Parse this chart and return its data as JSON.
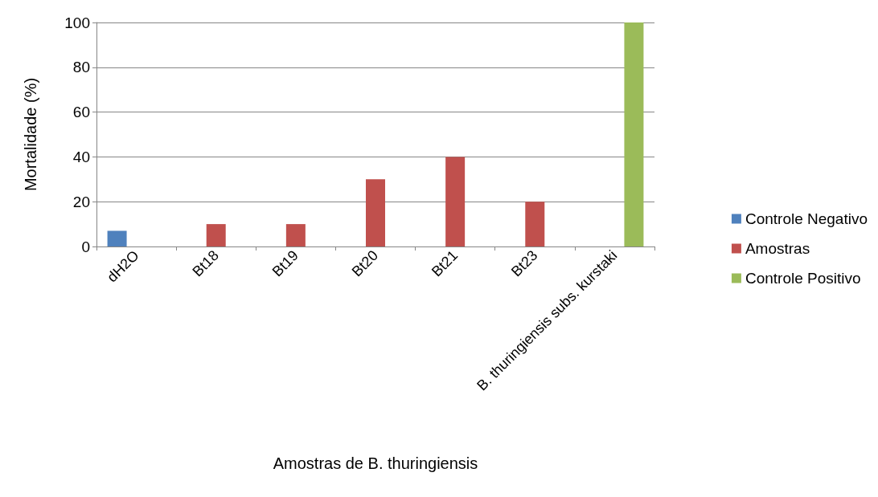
{
  "chart_data": {
    "type": "bar",
    "xlabel": "Amostras de B. thuringiensis",
    "ylabel": "Mortalidade (%)",
    "categories": [
      "dH2O",
      "Bt18",
      "Bt19",
      "Bt20",
      "Bt21",
      "Bt23",
      "B. thuringiensis subs. kurstaki"
    ],
    "series": [
      {
        "name": "Controle Negativo",
        "color": "#4f81bd",
        "values": [
          7,
          null,
          null,
          null,
          null,
          null,
          null
        ]
      },
      {
        "name": "Amostras",
        "color": "#c0504d",
        "values": [
          null,
          10,
          10,
          30,
          40,
          20,
          null
        ]
      },
      {
        "name": "Controle Positivo",
        "color": "#9bbb59",
        "values": [
          null,
          null,
          null,
          null,
          null,
          null,
          100
        ]
      }
    ],
    "ylim": [
      0,
      100
    ],
    "yticks": [
      0,
      20,
      40,
      60,
      80,
      100
    ],
    "grid": "y",
    "legend": "right"
  }
}
